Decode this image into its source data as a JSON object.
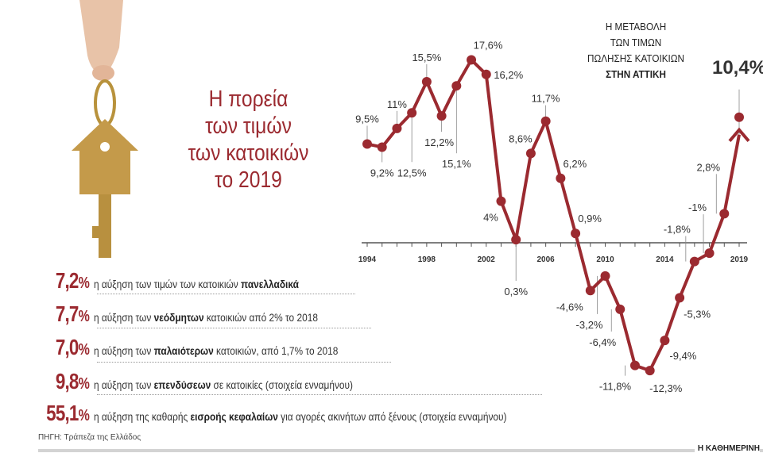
{
  "headline": [
    "Η πορεία",
    "των τιμών",
    "των κατοικιών",
    "το 2019"
  ],
  "stats": [
    {
      "value": "7,2",
      "unit": "%",
      "pre": "η αύξηση των τιμών των κατοικιών ",
      "bold": "πανελλαδικά",
      "post": ""
    },
    {
      "value": "7,7",
      "unit": "%",
      "pre": "η αύξηση των ",
      "bold": "νεόδμητων",
      "post": " κατοικιών από 2% το 2018"
    },
    {
      "value": "7,0",
      "unit": "%",
      "pre": "η αύξηση των ",
      "bold": "παλαιότερων",
      "post": " κατοικιών, από 1,7% το 2018"
    },
    {
      "value": "9,8",
      "unit": "%",
      "pre": "η αύξηση των ",
      "bold": "επενδύσεων",
      "post": " σε κατοικίες (στοιχεία ενναμήνου)"
    },
    {
      "value": "55,1",
      "unit": "%",
      "pre": "η αύξηση της καθαρής ",
      "bold": "εισροής κεφαλαίων",
      "post": " για αγορές ακινήτων από ξένους (στοιχεία ενναμήνου)"
    }
  ],
  "source": "ΠΗΓΗ: Τράπεζα της Ελλάδος",
  "brand": "Η ΚΑΘΗΜΕΡΙΝΗ",
  "colors": {
    "accent": "#9b2a30",
    "axis": "#555555"
  },
  "chart_data": {
    "type": "line",
    "title_lines": [
      "Η ΜΕΤΑΒΟΛΗ",
      "ΤΩΝ ΤΙΜΩΝ",
      "ΠΩΛΗΣΗΣ ΚΑΤΟΙΚΙΩΝ",
      "ΣΤΗΝ ΑΤΤΙΚΗ"
    ],
    "x": [
      1994,
      1995,
      1996,
      1997,
      1998,
      1999,
      2000,
      2001,
      2002,
      2003,
      2004,
      2005,
      2006,
      2007,
      2008,
      2009,
      2010,
      2011,
      2012,
      2013,
      2014,
      2015,
      2016,
      2017,
      2018,
      2019
    ],
    "values": [
      9.5,
      9.2,
      11,
      12.5,
      15.5,
      12.2,
      15.1,
      17.6,
      16.2,
      4,
      0.3,
      8.6,
      11.7,
      6.2,
      0.9,
      -4.6,
      -3.2,
      -6.4,
      -11.8,
      -12.3,
      -9.4,
      -5.3,
      -1.8,
      -1,
      2.8,
      10.4
    ],
    "labels": [
      "9,5%",
      "9,2%",
      "11%",
      "12,5%",
      "15,5%",
      "12,2%",
      "15,1%",
      "17,6%",
      "16,2%",
      "4%",
      "0,3%",
      "8,6%",
      "11,7%",
      "6,2%",
      "0,9%",
      "-4,6%",
      "-3,2%",
      "-6,4%",
      "-11,8%",
      "-12,3%",
      "-9,4%",
      "-5,3%",
      "-1,8%",
      "-1%",
      "2,8%",
      "10,4%"
    ],
    "xtick_labels": [
      "1994",
      "1998",
      "2002",
      "2006",
      "2010",
      "2014",
      "2019"
    ],
    "xlim": [
      1994,
      2019
    ],
    "ylim": [
      -12.3,
      17.6
    ],
    "grid": false
  }
}
